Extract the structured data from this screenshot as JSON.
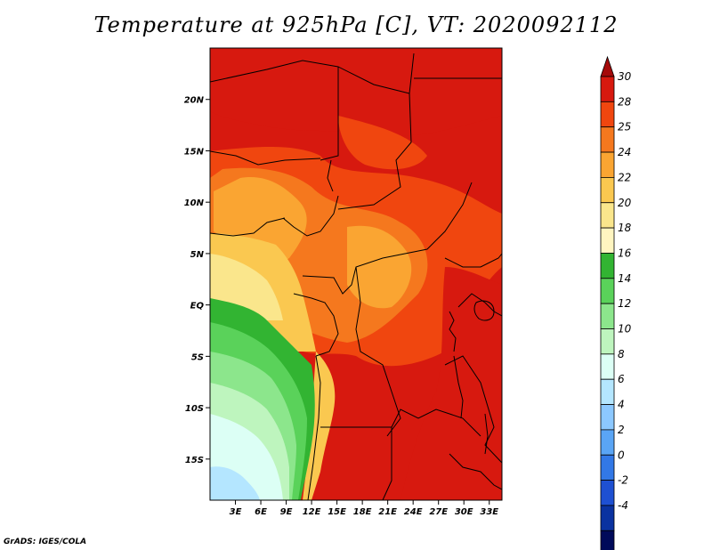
{
  "title": "Temperature at 925hPa [C], VT: 2020092112",
  "credit": "GrADS: IGES/COLA",
  "lat_labels": [
    "20N",
    "15N",
    "10N",
    "5N",
    "EQ",
    "5S",
    "10S",
    "15S"
  ],
  "lon_labels": [
    "3E",
    "6E",
    "9E",
    "12E",
    "15E",
    "18E",
    "21E",
    "24E",
    "27E",
    "30E",
    "33E"
  ],
  "colorbar": {
    "labels": [
      "30",
      "28",
      "25",
      "24",
      "22",
      "20",
      "18",
      "16",
      "14",
      "12",
      "10",
      "8",
      "6",
      "4",
      "2",
      "0",
      "-2",
      "-4"
    ],
    "colors": [
      "#a50a0a",
      "#d7190f",
      "#f0460f",
      "#f5781e",
      "#faa532",
      "#fac850",
      "#fae68c",
      "#fff5c0",
      "#32b432",
      "#5ad25a",
      "#8ce68c",
      "#bef5be",
      "#dcfff5",
      "#b4e6ff",
      "#8cc8ff",
      "#5aa5f5",
      "#3278e6",
      "#1e50d2",
      "#0a32a0",
      "#000a5a",
      "#dcdcff"
    ]
  },
  "map": {
    "lat_range": [
      -19,
      25
    ],
    "lon_range": [
      0,
      34.5
    ]
  }
}
